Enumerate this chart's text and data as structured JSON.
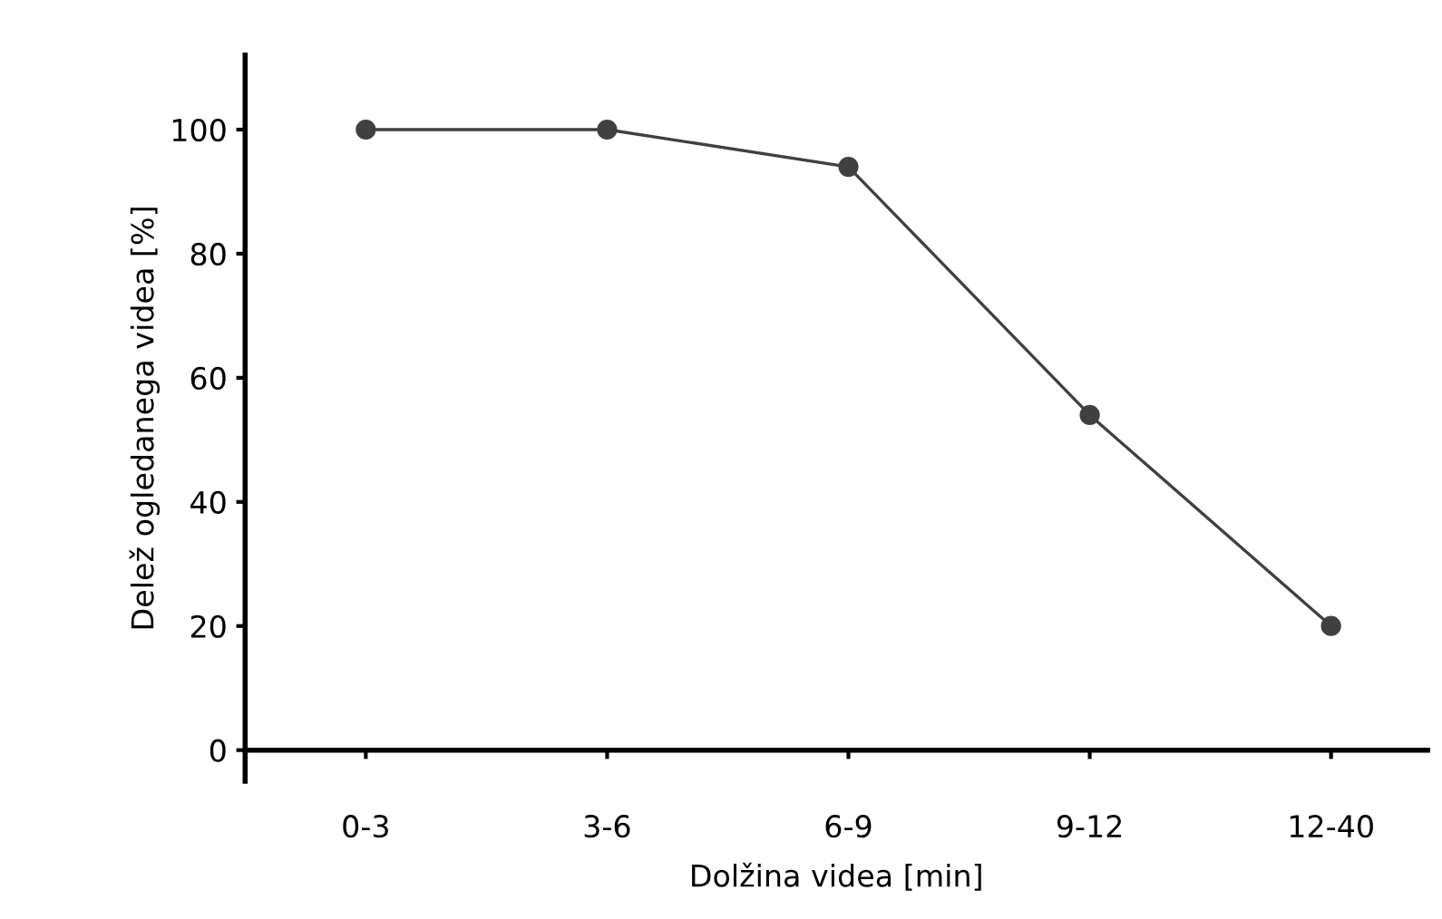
{
  "chart_data": {
    "type": "line",
    "xlabel": "Dolžina videa [min]",
    "ylabel": "Delež ogledanega videa [%]",
    "categories": [
      "0-3",
      "3-6",
      "6-9",
      "9-12",
      "12-40"
    ],
    "series": [
      {
        "color": "#404040",
        "values": [
          100,
          100,
          94,
          54,
          20
        ]
      }
    ],
    "ylim": [
      -5,
      112
    ],
    "yticks": [
      0,
      20,
      40,
      60,
      80,
      100
    ],
    "grid": false,
    "legend": false,
    "marker": "circle",
    "line_style": "solid"
  }
}
